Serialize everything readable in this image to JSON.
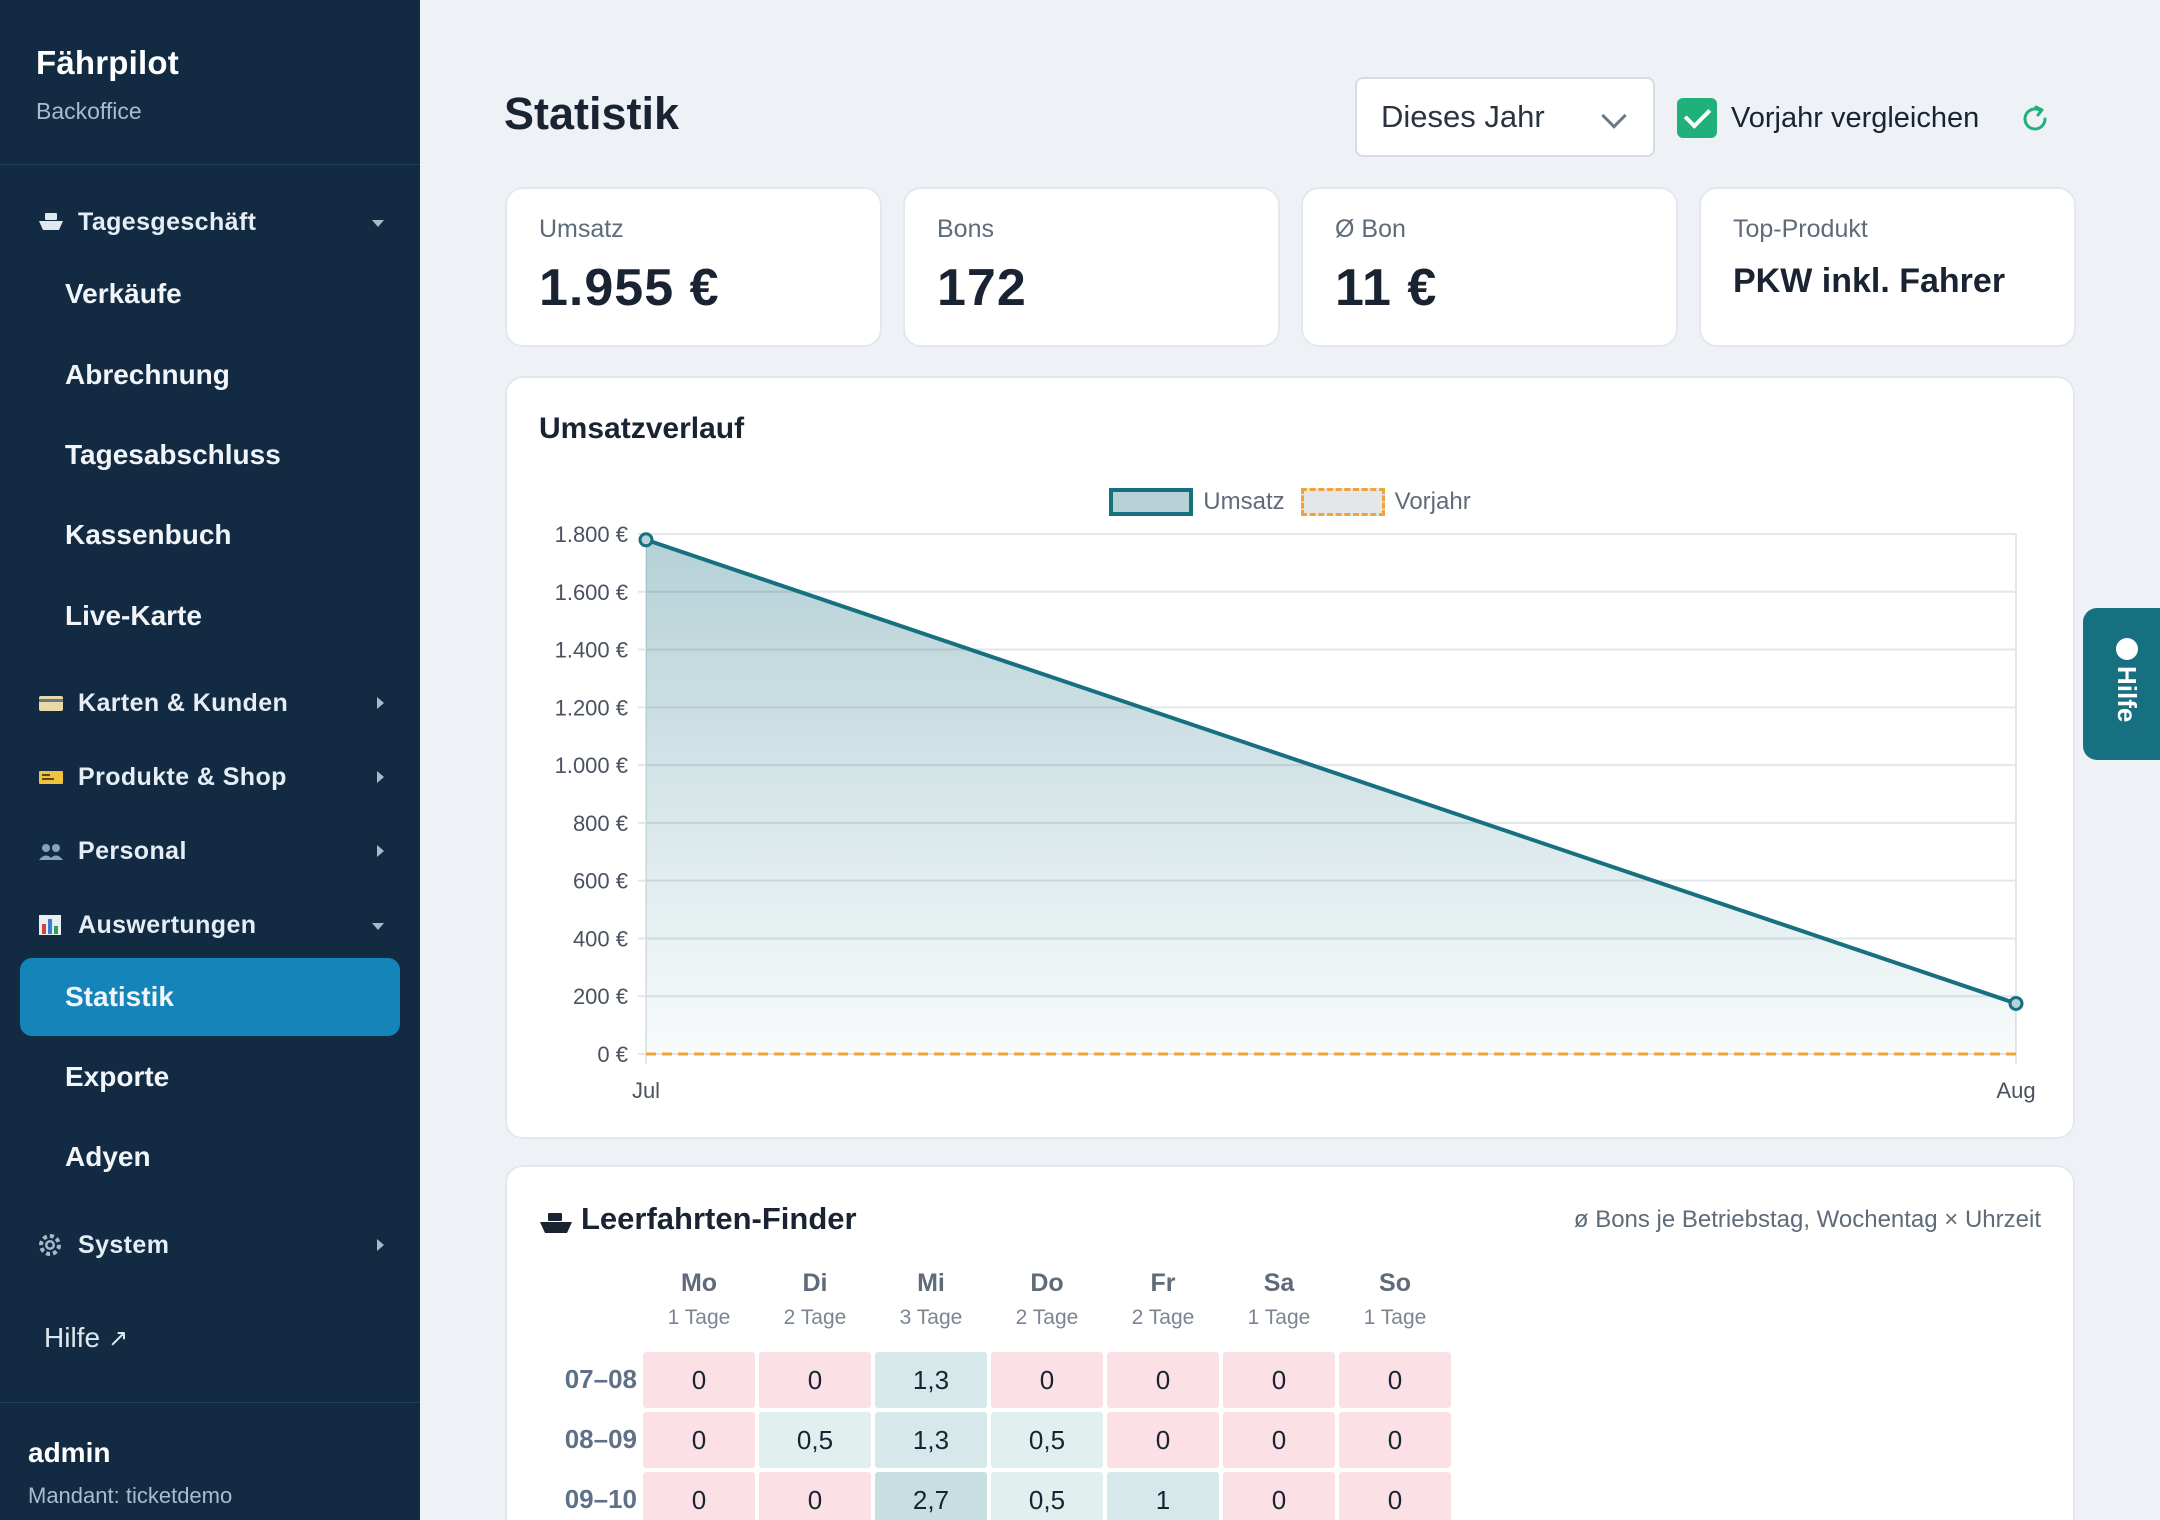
{
  "brand": {
    "title": "Fährpilot",
    "subtitle": "Backoffice"
  },
  "sidebar": {
    "groups": [
      {
        "label": "Tagesgeschäft",
        "icon": "ship-icon",
        "expanded": true
      },
      {
        "label": "Karten & Kunden",
        "icon": "card-icon",
        "expanded": false
      },
      {
        "label": "Produkte & Shop",
        "icon": "ticket-icon",
        "expanded": false
      },
      {
        "label": "Personal",
        "icon": "people-icon",
        "expanded": false
      },
      {
        "label": "Auswertungen",
        "icon": "chart-icon",
        "expanded": true
      },
      {
        "label": "System",
        "icon": "gear-icon",
        "expanded": false
      }
    ],
    "items": [
      {
        "label": "Verkäufe"
      },
      {
        "label": "Abrechnung"
      },
      {
        "label": "Tagesabschluss"
      },
      {
        "label": "Kassenbuch"
      },
      {
        "label": "Live-Karte"
      },
      {
        "label": "Statistik",
        "active": true
      },
      {
        "label": "Exporte"
      },
      {
        "label": "Adyen"
      }
    ],
    "help_link": "Hilfe",
    "help_arrow": "↗"
  },
  "user": {
    "name": "admin",
    "tenant": "Mandant: ticketdemo"
  },
  "header": {
    "title": "Statistik",
    "period": "Dieses Jahr",
    "compare_label": "Vorjahr vergleichen",
    "compare_checked": true
  },
  "kpis": [
    {
      "label": "Umsatz",
      "value": "1.955 €"
    },
    {
      "label": "Bons",
      "value": "172"
    },
    {
      "label": "Ø Bon",
      "value": "11 €"
    },
    {
      "label": "Top-Produkt",
      "value": "PKW inkl. Fahrer"
    }
  ],
  "revenue_chart": {
    "title": "Umsatzverlauf",
    "legend": [
      "Umsatz",
      "Vorjahr"
    ]
  },
  "chart_data": {
    "type": "area",
    "categories": [
      "Jul",
      "Aug"
    ],
    "series": [
      {
        "name": "Umsatz",
        "values": [
          1780,
          175
        ],
        "color": "#177080",
        "fill": "#b6d2d6"
      },
      {
        "name": "Vorjahr",
        "values": [
          0,
          0
        ],
        "color": "#f0a33a",
        "dashed": true
      }
    ],
    "ylim": [
      0,
      1800
    ],
    "y_ticks": [
      0,
      200,
      400,
      600,
      800,
      1000,
      1200,
      1400,
      1600,
      1800
    ],
    "y_tick_labels": [
      "0 €",
      "200 €",
      "400 €",
      "600 €",
      "800 €",
      "1.000 €",
      "1.200 €",
      "1.400 €",
      "1.600 €",
      "1.800 €"
    ],
    "grid": true,
    "legend_position": "top"
  },
  "heatmap": {
    "title": "Leerfahrten-Finder",
    "note": "ø Bons je Betriebstag, Wochentag × Uhrzeit",
    "days": [
      {
        "day": "Mo",
        "sub": "1 Tage"
      },
      {
        "day": "Di",
        "sub": "2 Tage"
      },
      {
        "day": "Mi",
        "sub": "3 Tage"
      },
      {
        "day": "Do",
        "sub": "2 Tage"
      },
      {
        "day": "Fr",
        "sub": "2 Tage"
      },
      {
        "day": "Sa",
        "sub": "1 Tage"
      },
      {
        "day": "So",
        "sub": "1 Tage"
      }
    ],
    "rows": [
      {
        "label": "07–08",
        "values": [
          "0",
          "0",
          "1,3",
          "0",
          "0",
          "0",
          "0"
        ]
      },
      {
        "label": "08–09",
        "values": [
          "0",
          "0,5",
          "1,3",
          "0,5",
          "0",
          "0",
          "0"
        ]
      },
      {
        "label": "09–10",
        "values": [
          "0",
          "0",
          "2,7",
          "0,5",
          "1",
          "0",
          "0"
        ]
      }
    ],
    "colors": {
      "zero": "#fbe1e5",
      "low": "#e2efef",
      "mid": "#d6e8ea",
      "high": "#c8dfe2"
    }
  },
  "help_tab": {
    "label": "Hilfe"
  },
  "colors": {
    "sidebar": "#122a42",
    "active": "#1584b8",
    "accent": "#177080",
    "check": "#20b07a"
  }
}
